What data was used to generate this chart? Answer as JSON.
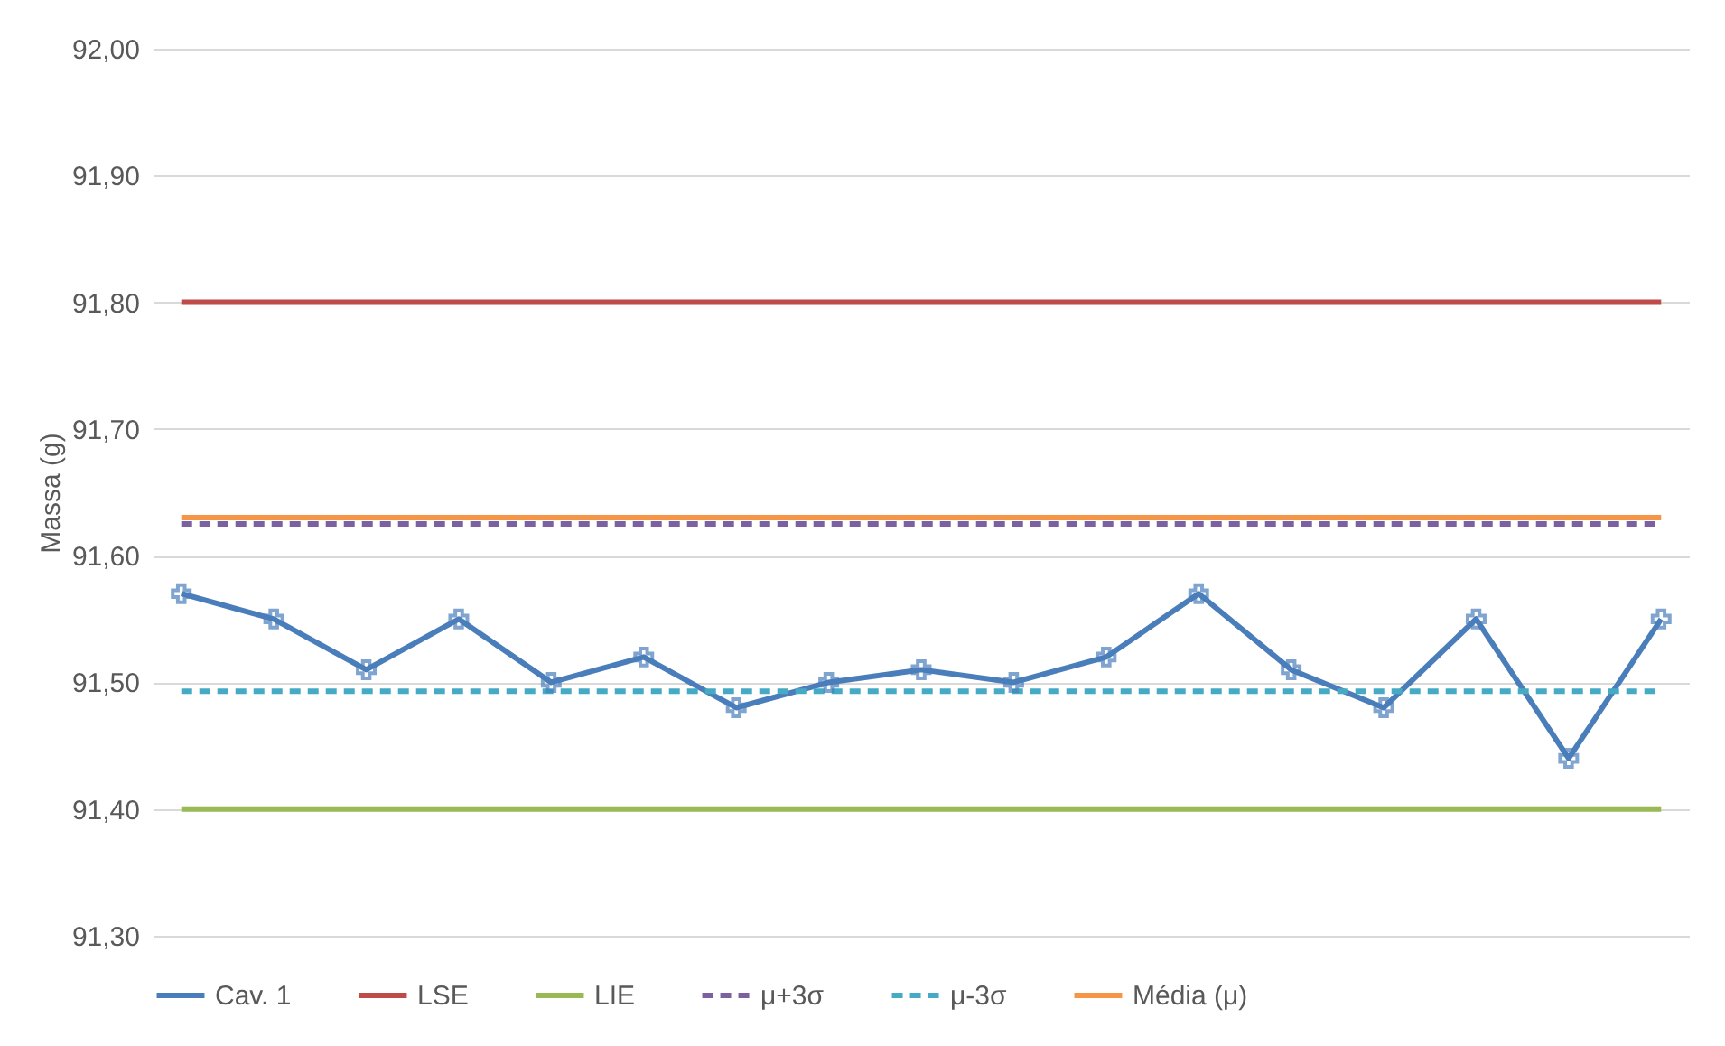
{
  "chart_data": {
    "type": "line",
    "ylabel": "Massa (g)",
    "categories": [
      null,
      null,
      null,
      null,
      null,
      null,
      null,
      null,
      null,
      null,
      null,
      null,
      null,
      null,
      null,
      null,
      null
    ],
    "series": [
      {
        "name": "Cav. 1",
        "color": "#4a7ebb",
        "marker": "cross",
        "line_style": "solid",
        "values": [
          91.57,
          91.55,
          91.51,
          91.55,
          91.5,
          91.52,
          91.48,
          91.5,
          91.51,
          91.5,
          91.52,
          91.57,
          91.51,
          91.48,
          91.55,
          91.44,
          91.55
        ]
      },
      {
        "name": "LSE",
        "color": "#be4b48",
        "marker": "none",
        "line_style": "solid",
        "values": [
          91.8,
          91.8,
          91.8,
          91.8,
          91.8,
          91.8,
          91.8,
          91.8,
          91.8,
          91.8,
          91.8,
          91.8,
          91.8,
          91.8,
          91.8,
          91.8,
          91.8
        ]
      },
      {
        "name": "LIE",
        "color": "#98b954",
        "marker": "none",
        "line_style": "solid",
        "values": [
          91.4,
          91.4,
          91.4,
          91.4,
          91.4,
          91.4,
          91.4,
          91.4,
          91.4,
          91.4,
          91.4,
          91.4,
          91.4,
          91.4,
          91.4,
          91.4,
          91.4
        ]
      },
      {
        "name": "μ+3σ",
        "color": "#7d60a0",
        "marker": "none",
        "line_style": "dashed",
        "values": [
          91.625,
          91.625,
          91.625,
          91.625,
          91.625,
          91.625,
          91.625,
          91.625,
          91.625,
          91.625,
          91.625,
          91.625,
          91.625,
          91.625,
          91.625,
          91.625,
          91.625
        ]
      },
      {
        "name": "μ-3σ",
        "color": "#46aac5",
        "marker": "none",
        "line_style": "dashed",
        "values": [
          91.493,
          91.493,
          91.493,
          91.493,
          91.493,
          91.493,
          91.493,
          91.493,
          91.493,
          91.493,
          91.493,
          91.493,
          91.493,
          91.493,
          91.493,
          91.493,
          91.493
        ]
      },
      {
        "name": "Média (μ)",
        "color": "#f69545",
        "marker": "none",
        "line_style": "solid",
        "values": [
          91.63,
          91.63,
          91.63,
          91.63,
          91.63,
          91.63,
          91.63,
          91.63,
          91.63,
          91.63,
          91.63,
          91.63,
          91.63,
          91.63,
          91.63,
          91.63,
          91.63
        ]
      }
    ],
    "ylim": [
      91.3,
      92.0
    ],
    "yticks": [
      {
        "value": 91.3,
        "label": "91,30"
      },
      {
        "value": 91.4,
        "label": "91,40"
      },
      {
        "value": 91.5,
        "label": "91,50"
      },
      {
        "value": 91.6,
        "label": "91,60"
      },
      {
        "value": 91.7,
        "label": "91,70"
      },
      {
        "value": 91.8,
        "label": "91,80"
      },
      {
        "value": 91.9,
        "label": "91,90"
      },
      {
        "value": 92.0,
        "label": "92,00"
      }
    ],
    "grid": "y",
    "legend": "bottom",
    "tick_labels": "y"
  }
}
